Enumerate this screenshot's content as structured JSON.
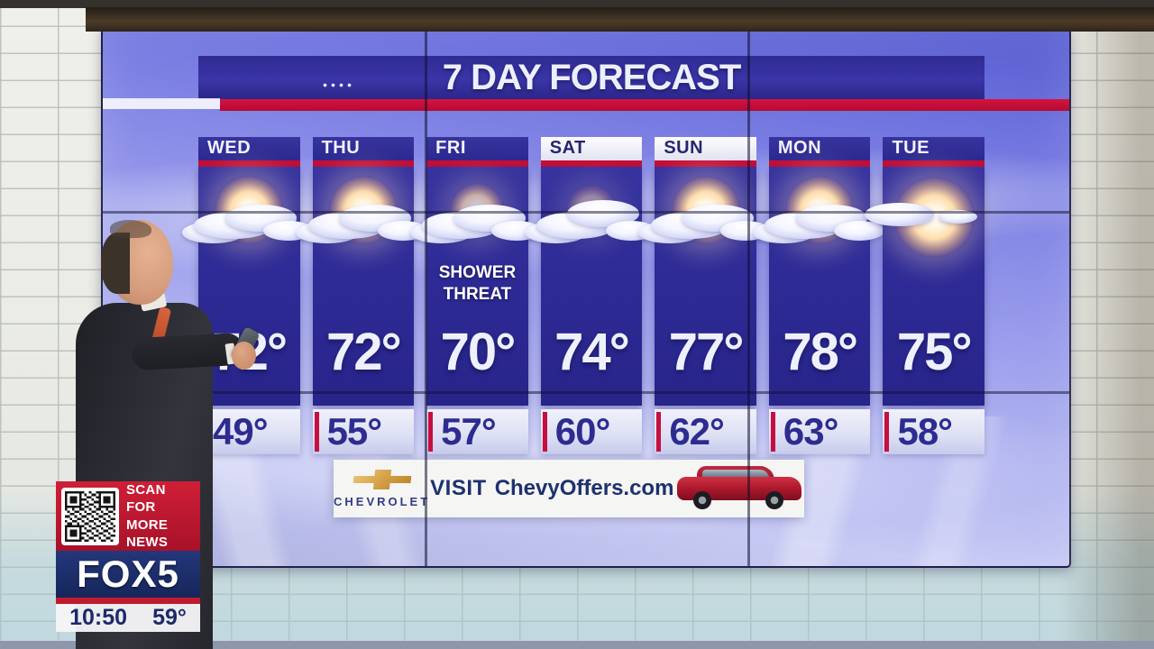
{
  "board": {
    "title": "7 DAY FORECAST",
    "days": [
      {
        "label": "WED",
        "high": "72°",
        "low": "49°",
        "icon": "sun-behind-cloud",
        "note": "",
        "highlight": false
      },
      {
        "label": "THU",
        "high": "72°",
        "low": "55°",
        "icon": "sun-behind-cloud",
        "note": "",
        "highlight": false
      },
      {
        "label": "FRI",
        "high": "70°",
        "low": "57°",
        "icon": "cloudy-dim-sun",
        "note": "SHOWER THREAT",
        "highlight": false
      },
      {
        "label": "SAT",
        "high": "74°",
        "low": "60°",
        "icon": "mostly-cloudy",
        "note": "",
        "highlight": true
      },
      {
        "label": "SUN",
        "high": "77°",
        "low": "62°",
        "icon": "sun-behind-cloud",
        "note": "",
        "highlight": true
      },
      {
        "label": "MON",
        "high": "78°",
        "low": "63°",
        "icon": "sun-behind-cloud",
        "note": "",
        "highlight": false
      },
      {
        "label": "TUE",
        "high": "75°",
        "low": "58°",
        "icon": "sun-small-cloud",
        "note": "",
        "highlight": false
      }
    ]
  },
  "ad": {
    "brand": "CHEVROLET",
    "cta_prefix": "VISIT",
    "cta_url": "ChevyOffers.com",
    "vehicle": "red-suv"
  },
  "bug": {
    "qr_caption_lines": [
      "SCAN",
      "FOR MORE",
      "NEWS"
    ],
    "station": "FOX5",
    "time": "10:50",
    "temperature": "59°"
  },
  "colors": {
    "accent_red": "#c60e38",
    "panel_navy": "#2d2b97",
    "board_sky": "#8d90e6",
    "fox_navy": "#1c2f6e",
    "bug_red": "#c01a30",
    "chevy_gold": "#cf9a3e",
    "suv_red": "#b01a2e"
  }
}
